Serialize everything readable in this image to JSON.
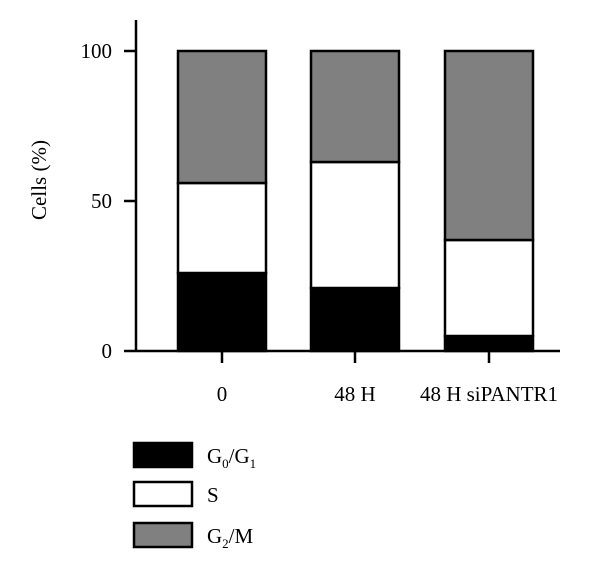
{
  "chart_data": {
    "type": "bar",
    "stacked": true,
    "categories": [
      "0",
      "48 H",
      "48 H siPANTR1"
    ],
    "series": [
      {
        "name": "G0/G1",
        "label_main": "G",
        "label_sub1": "0",
        "label_mid": "/G",
        "label_sub2": "1",
        "color": "#000000",
        "values": [
          26,
          21,
          5
        ]
      },
      {
        "name": "S",
        "label_main": "S",
        "color": "#ffffff",
        "values": [
          30,
          42,
          32
        ]
      },
      {
        "name": "G2/M",
        "label_main": "G",
        "label_sub1": "2",
        "label_mid": "/M",
        "color": "#808080",
        "values": [
          44,
          37,
          63
        ]
      }
    ],
    "ylabel": "Cells (%)",
    "ylim": [
      0,
      100
    ],
    "yticks": [
      0,
      50,
      100
    ],
    "grid": false,
    "legend": "bottom-left"
  }
}
